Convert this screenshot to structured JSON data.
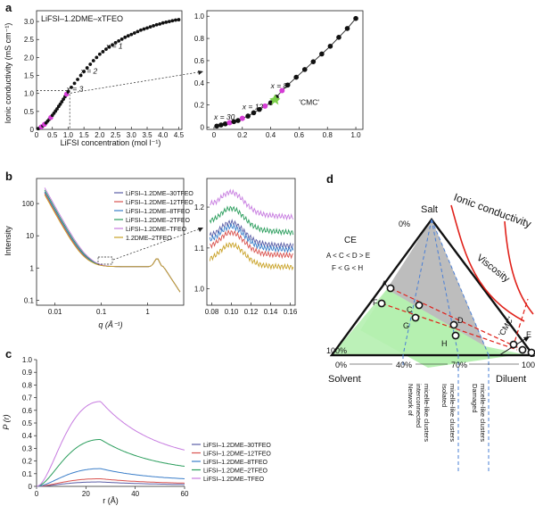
{
  "figure": {
    "panel_a_label": "a",
    "panel_b_label": "b",
    "panel_c_label": "c",
    "panel_d_label": "d"
  },
  "chart_data": [
    {
      "id": "a-left",
      "type": "scatter",
      "title": "LiFSI–1.2DME–xTFEO",
      "xlabel": "LiFSI concentration (mol l⁻¹)",
      "ylabel": "Ionic conductivity (mS cm⁻¹)",
      "xlim": [
        0,
        4.6
      ],
      "ylim": [
        0,
        3.3
      ],
      "xticks": [
        "0",
        "0.5",
        "1.0",
        "1.5",
        "2.0",
        "2.5",
        "3.0",
        "3.5",
        "4.0",
        "4.5"
      ],
      "yticks": [
        "0",
        "0.5",
        "1.0",
        "1.5",
        "2.0",
        "2.5",
        "3.0"
      ],
      "x": [
        0.05,
        0.1,
        0.15,
        0.2,
        0.25,
        0.3,
        0.35,
        0.4,
        0.45,
        0.5,
        0.55,
        0.6,
        0.65,
        0.7,
        0.75,
        0.8,
        0.85,
        0.9,
        0.95,
        1.0,
        1.1,
        1.2,
        1.3,
        1.4,
        1.5,
        1.6,
        1.7,
        1.8,
        1.9,
        2.0,
        2.1,
        2.2,
        2.3,
        2.4,
        2.5,
        2.6,
        2.7,
        2.8,
        2.9,
        3.0,
        3.1,
        3.2,
        3.3,
        3.4,
        3.5,
        3.6,
        3.7,
        3.8,
        3.9,
        4.0,
        4.1,
        4.2,
        4.3,
        4.4,
        4.5
      ],
      "y": [
        0.02,
        0.04,
        0.07,
        0.1,
        0.14,
        0.18,
        0.23,
        0.28,
        0.33,
        0.39,
        0.45,
        0.51,
        0.57,
        0.64,
        0.7,
        0.77,
        0.84,
        0.91,
        0.98,
        1.05,
        1.17,
        1.28,
        1.39,
        1.5,
        1.61,
        1.71,
        1.81,
        1.91,
        2.0,
        2.09,
        2.16,
        2.23,
        2.29,
        2.35,
        2.41,
        2.46,
        2.51,
        2.56,
        2.6,
        2.64,
        2.68,
        2.72,
        2.76,
        2.79,
        2.82,
        2.85,
        2.88,
        2.91,
        2.93,
        2.96,
        2.98,
        3.0,
        3.02,
        3.04,
        3.05
      ],
      "highlighted_x": [
        0.15,
        0.25,
        0.45,
        0.95,
        1.45,
        2.25
      ],
      "annotations": [
        {
          "text": "x = 1",
          "x": 2.2,
          "y": 2.25
        },
        {
          "text": "x = 2",
          "x": 1.4,
          "y": 1.55
        },
        {
          "text": "x = 3",
          "x": 0.95,
          "y": 1.05
        }
      ],
      "guide_x": 1.05,
      "guide_y": 1.08
    },
    {
      "id": "a-right",
      "type": "line",
      "xlim": [
        -0.05,
        1.05
      ],
      "ylim": [
        -0.02,
        1.05
      ],
      "xticks": [
        "0",
        "0.2",
        "0.4",
        "0.6",
        "0.8",
        "1.0"
      ],
      "yticks": [
        "0",
        "0.2",
        "0.4",
        "0.6",
        "0.8",
        "1.0"
      ],
      "x": [
        0.02,
        0.05,
        0.08,
        0.11,
        0.14,
        0.17,
        0.2,
        0.24,
        0.28,
        0.32,
        0.36,
        0.4,
        0.44,
        0.48,
        0.52,
        0.58,
        0.64,
        0.7,
        0.76,
        0.82,
        0.88,
        0.94,
        1.0
      ],
      "y": [
        0.01,
        0.02,
        0.03,
        0.04,
        0.05,
        0.06,
        0.08,
        0.1,
        0.13,
        0.16,
        0.19,
        0.22,
        0.27,
        0.33,
        0.38,
        0.45,
        0.52,
        0.59,
        0.66,
        0.73,
        0.81,
        0.89,
        0.98
      ],
      "highlighted_x": [
        0.11,
        0.2,
        0.36,
        0.48
      ],
      "annotations": [
        {
          "text": "x = 30",
          "x": 0.0,
          "y": 0.07
        },
        {
          "text": "x = 12",
          "x": 0.2,
          "y": 0.16
        },
        {
          "text": "x = 8",
          "x": 0.4,
          "y": 0.35
        },
        {
          "text": "'CMC'",
          "x": 0.6,
          "y": 0.2
        }
      ],
      "cmc_x": 0.43,
      "cmc_y": 0.25
    },
    {
      "id": "b-left",
      "type": "line",
      "xlabel": "q (Å⁻¹)",
      "ylabel": "Intensity",
      "scale": "log-log",
      "xticks": [
        "0.01",
        "0.1",
        "1"
      ],
      "yticks": [
        "0.1",
        "1",
        "10",
        "100"
      ],
      "series": [
        {
          "name": "LiFSI–1.2DME–30TFEO",
          "color": "#5b5ea6"
        },
        {
          "name": "LiFSI–1.2DME–12TFEO",
          "color": "#d9534f"
        },
        {
          "name": "LiFSI–1.2DME–8TFEO",
          "color": "#3a7ec9"
        },
        {
          "name": "LiFSI–1.2DME–2TFEO",
          "color": "#2a9d5c"
        },
        {
          "name": "LiFSI–1.2DME–TFEO",
          "color": "#c77ce0"
        },
        {
          "name": "1.2DME–2TFEO",
          "color": "#c9a227"
        }
      ]
    },
    {
      "id": "b-right",
      "type": "line",
      "xticks": [
        "0.08",
        "0.10",
        "0.12",
        "0.14",
        "0.16"
      ],
      "yticks": [
        "1.0",
        "1.1",
        "1.2"
      ],
      "xlim": [
        0.075,
        0.165
      ],
      "ylim": [
        0.96,
        1.27
      ],
      "series_levels": [
        1.115,
        1.09,
        1.105,
        1.15,
        1.19,
        1.06
      ]
    },
    {
      "id": "c",
      "type": "line",
      "xlabel": "r (Å)",
      "ylabel": "P (r)",
      "xlim": [
        0,
        60
      ],
      "ylim": [
        0,
        1.0
      ],
      "xticks": [
        "0",
        "20",
        "40",
        "60"
      ],
      "yticks": [
        "0",
        "0.1",
        "0.2",
        "0.3",
        "0.4",
        "0.5",
        "0.6",
        "0.7",
        "0.8",
        "0.9",
        "1.0"
      ],
      "series": [
        {
          "name": "LiFSI–1.2DME–30TFEO",
          "color": "#5b5ea6",
          "peak": 0.035
        },
        {
          "name": "LiFSI–1.2DME–12TFEO",
          "color": "#d9534f",
          "peak": 0.06
        },
        {
          "name": "LiFSI–1.2DME–8TFEO",
          "color": "#3a7ec9",
          "peak": 0.14
        },
        {
          "name": "LiFSI–1.2DME–2TFEO",
          "color": "#2a9d5c",
          "peak": 0.37
        },
        {
          "name": "LiFSI–1.2DME–TFEO",
          "color": "#c77ce0",
          "peak": 0.67
        }
      ]
    }
  ],
  "diagram_d": {
    "apex_label": "Salt",
    "left_label": "Solvent",
    "right_label": "Diluent",
    "pct_top": "0%",
    "pct_left": "100%",
    "pct_bottom_left": "0%",
    "pct_40": "40%",
    "pct_70": "70%",
    "pct_bottom_right": "100%",
    "ce_title": "CE",
    "ce_line1": "A < C < D > E",
    "ce_line2": "F < G < H",
    "ionic_label": "Ionic conductivity",
    "viscosity_label": "Viscosity",
    "cmc_label": "'CMC'",
    "points": [
      "A",
      "B",
      "C",
      "D",
      "E",
      "F",
      "G",
      "H"
    ],
    "region1_line1": "Network of",
    "region1_line2": "interconnected",
    "region1_line3": "micelle-like clusters",
    "region2_line1": "Isolated",
    "region2_line2": "micelle-like clusters",
    "region3_line1": "Damaged",
    "region3_line2": "micelle-like clusters",
    "colors": {
      "salt_region": "#bdbdbd",
      "solvent_region": "#b5f0b0",
      "curve": "#e0211a",
      "guide": "#4a7fd6"
    }
  }
}
